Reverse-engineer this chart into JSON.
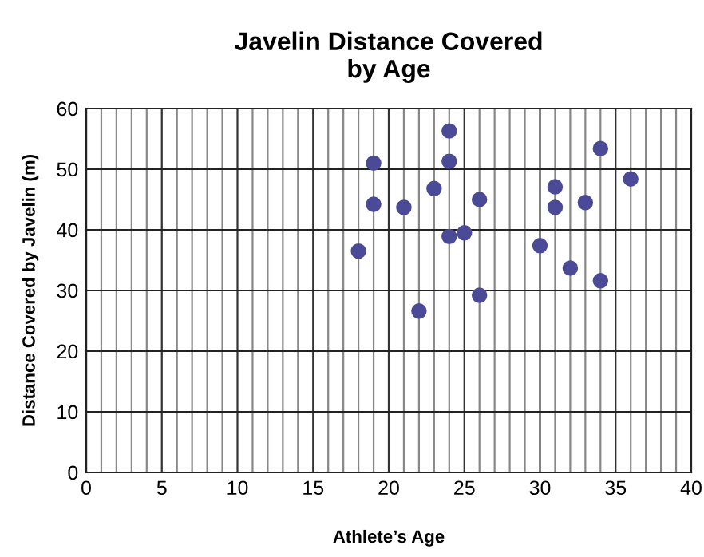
{
  "chart_data": {
    "type": "scatter",
    "title": "Javelin Distance Covered\nby Age",
    "xlabel": "Athlete’s Age",
    "ylabel": "Distance Covered by Javelin (m)",
    "x": [
      18,
      19,
      19,
      21,
      22,
      23,
      24,
      24,
      24,
      25,
      26,
      26,
      30,
      31,
      31,
      32,
      33,
      34,
      34,
      36
    ],
    "series": [
      {
        "color": "#4b4a96",
        "values": [
          36.5,
          51,
          44.2,
          43.7,
          26.6,
          46.8,
          56.3,
          51.3,
          38.9,
          39.5,
          45,
          29.2,
          37.4,
          47.1,
          43.7,
          33.7,
          44.5,
          31.6,
          53.4,
          48.4
        ]
      }
    ],
    "xlim": [
      0,
      40
    ],
    "ylim": [
      0,
      60
    ],
    "xticks": [
      0,
      {
        "value": 1,
        "label": null
      },
      {
        "value": 2,
        "label": null
      },
      {
        "value": 3,
        "label": null
      },
      {
        "value": 4,
        "label": null
      },
      5,
      {
        "value": 6,
        "label": null
      },
      {
        "value": 7,
        "label": null
      },
      {
        "value": 8,
        "label": null
      },
      {
        "value": 9,
        "label": null
      },
      10,
      {
        "value": 11,
        "label": null
      },
      {
        "value": 12,
        "label": null
      },
      {
        "value": 13,
        "label": null
      },
      {
        "value": 14,
        "label": null
      },
      15,
      {
        "value": 16,
        "label": null
      },
      {
        "value": 17,
        "label": null
      },
      {
        "value": 18,
        "label": null
      },
      {
        "value": 19,
        "label": null
      },
      20,
      {
        "value": 21,
        "label": null
      },
      {
        "value": 22,
        "label": null
      },
      {
        "value": 23,
        "label": null
      },
      {
        "value": 24,
        "label": null
      },
      25,
      {
        "value": 26,
        "label": null
      },
      {
        "value": 27,
        "label": null
      },
      {
        "value": 28,
        "label": null
      },
      {
        "value": 29,
        "label": null
      },
      30,
      {
        "value": 31,
        "label": null
      },
      {
        "value": 32,
        "label": null
      },
      {
        "value": 33,
        "label": null
      },
      {
        "value": 34,
        "label": null
      },
      35,
      {
        "value": 36,
        "label": null
      },
      {
        "value": 37,
        "label": null
      },
      {
        "value": 38,
        "label": null
      },
      {
        "value": 39,
        "label": null
      },
      40
    ],
    "yticks": [
      0,
      10,
      20,
      30,
      40,
      50,
      60
    ],
    "grid": true,
    "marker": "circle"
  }
}
